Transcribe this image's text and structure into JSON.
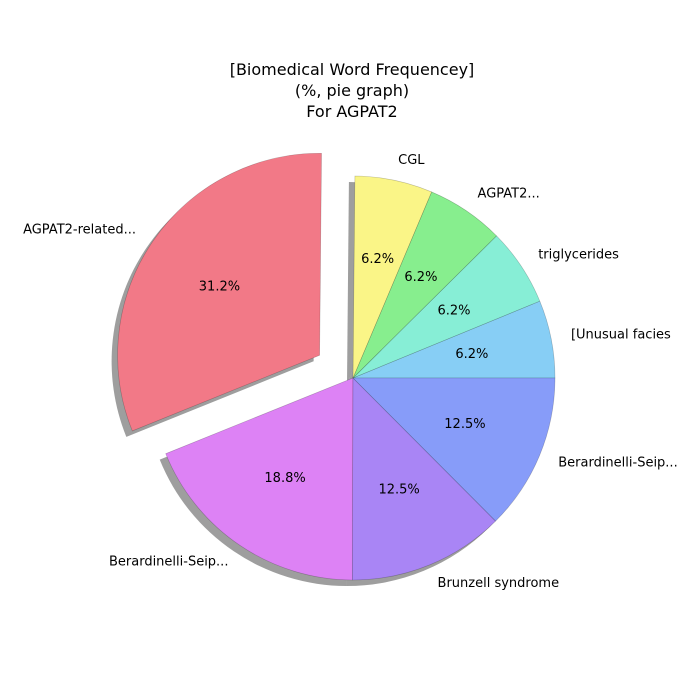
{
  "chart_data": {
    "type": "pie",
    "title": [
      "[Biomedical Word Frequencey]",
      "(%, pie graph)",
      "For AGPAT2"
    ],
    "slices": [
      {
        "label": "[Unusual facies",
        "value": 6.2,
        "pct_text": "6.2%",
        "color": "#87cef5"
      },
      {
        "label": "triglycerides",
        "value": 6.2,
        "pct_text": "6.2%",
        "color": "#87eed6"
      },
      {
        "label": "AGPAT2...",
        "value": 6.2,
        "pct_text": "6.2%",
        "color": "#87ee8e"
      },
      {
        "label": "CGL",
        "value": 6.2,
        "pct_text": "6.2%",
        "color": "#faf587"
      },
      {
        "label": "AGPAT2-related...",
        "value": 31.2,
        "pct_text": "31.2%",
        "color": "#f27987",
        "exploded": true
      },
      {
        "label": "Berardinelli-Seip...",
        "value": 18.8,
        "pct_text": "18.8%",
        "color": "#dd82f5"
      },
      {
        "label": "Brunzell syndrome",
        "value": 12.5,
        "pct_text": "12.5%",
        "color": "#a985f5"
      },
      {
        "label": "Berardinelli-Seip...",
        "value": 12.5,
        "pct_text": "12.5%",
        "color": "#879cf9"
      }
    ],
    "start_angle_deg": 0,
    "direction": "counterclockwise",
    "shadow": true
  }
}
